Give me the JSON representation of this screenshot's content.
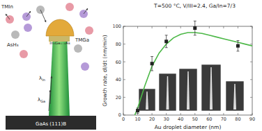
{
  "chart_data": {
    "type": "scatter",
    "title": "T=500 °C, V/III=2.4, Ga/In=7/3",
    "x_label": "Au droplet diameter (nm)",
    "y_label": "Growth rate, dl/dt (nm/min)",
    "xlim": [
      0,
      90
    ],
    "xticks": [
      0,
      10,
      20,
      30,
      40,
      50,
      60,
      70,
      80,
      90
    ],
    "ylim": [
      0,
      100
    ],
    "yticks": [
      0,
      20,
      40,
      60,
      80,
      100
    ],
    "grid": false,
    "series": [
      {
        "type": "scatter",
        "marker": "square",
        "color": "#222222",
        "x": [
          10,
          20,
          30,
          50,
          80
        ],
        "values": [
          5,
          58,
          83,
          98,
          78
        ],
        "errors": [
          3,
          8,
          7,
          8,
          6
        ]
      },
      {
        "type": "line",
        "line_style": "solid",
        "color": "#4cb847",
        "x": [
          8,
          10,
          15,
          20,
          25,
          30,
          35,
          40,
          45,
          50,
          55,
          60,
          65,
          70,
          75,
          80,
          85,
          90
        ],
        "values": [
          0,
          8,
          33,
          55,
          70,
          80,
          87,
          91,
          93,
          93,
          92,
          90,
          88,
          86,
          84,
          82,
          80,
          78
        ]
      }
    ]
  },
  "diagram": {
    "labels": [
      {
        "text": "TMIn"
      },
      {
        "text": "AsH₃"
      },
      {
        "text": "TMGa"
      },
      {
        "text": "λ",
        "sub": "In"
      },
      {
        "text": "λ",
        "sub": "Ga"
      },
      {
        "text": "InₓGa₁₋ₓAs"
      },
      {
        "text": "GaAs (111)B"
      }
    ]
  }
}
